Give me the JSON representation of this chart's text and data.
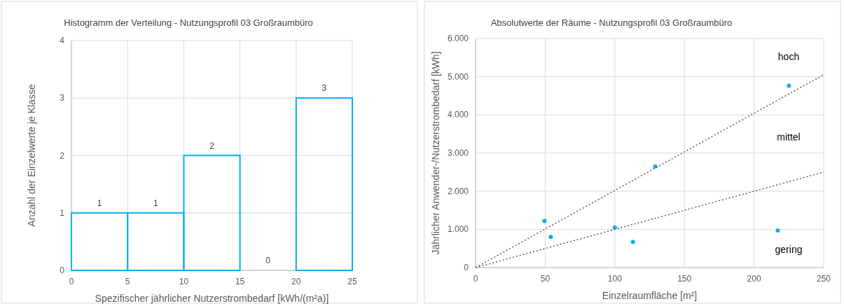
{
  "chart_data": [
    {
      "type": "histogram",
      "title": "Histogramm der Verteilung - Nutzungsprofil 03 Großraumbüro",
      "xlabel": "Spezifischer jährlicher Nutzerstrombedarf [kWh/(m²a)]",
      "ylabel": "Anzahl der Einzelwerte je Klasse",
      "bins": [
        0,
        5,
        10,
        15,
        20,
        25
      ],
      "values": [
        1,
        1,
        2,
        0,
        3
      ],
      "color": "#00b0f0",
      "xlim": [
        0,
        25
      ],
      "xticks": [
        0,
        5,
        10,
        15,
        20,
        25
      ],
      "ylim": [
        0,
        4
      ],
      "yticks": [
        0,
        1,
        2,
        3,
        4
      ],
      "grid": true,
      "data_labels": true
    },
    {
      "type": "scatter",
      "title": "Absolutwerte der Räume - Nutzungsprofil 03 Großraumbüro",
      "xlabel": "Einzelraumfläche [m²]",
      "ylabel": "Jährlicher Anwender-/Nutzerstrombedarf [kWh]",
      "series": [
        {
          "type": "scatter",
          "color": "#00b0f0",
          "x": [
            49.5,
            54,
            100,
            113,
            129,
            217,
            225
          ],
          "values": [
            1220,
            800,
            1050,
            670,
            2650,
            970,
            4760
          ],
          "marker": "circle"
        },
        {
          "type": "line",
          "color": "#595959",
          "x": [
            0,
            250
          ],
          "values": [
            0,
            5050
          ],
          "line_style": "dotted"
        },
        {
          "type": "line",
          "color": "#595959",
          "x": [
            0,
            250
          ],
          "values": [
            0,
            2500
          ],
          "line_style": "dotted"
        }
      ],
      "annotations": [
        "hoch",
        "mittel",
        "gering"
      ],
      "xlim": [
        0,
        250
      ],
      "xticks": [
        0,
        50,
        100,
        150,
        200,
        250
      ],
      "ylim": [
        0,
        6000
      ],
      "yticks": [
        0,
        {
          "value": 1000,
          "label": "1.000"
        },
        {
          "value": 2000,
          "label": "2.000"
        },
        {
          "value": 3000,
          "label": "3.000"
        },
        {
          "value": 4000,
          "label": "4.000"
        },
        {
          "value": 5000,
          "label": "5.000"
        },
        {
          "value": 6000,
          "label": "6.000"
        }
      ],
      "grid": true
    }
  ]
}
